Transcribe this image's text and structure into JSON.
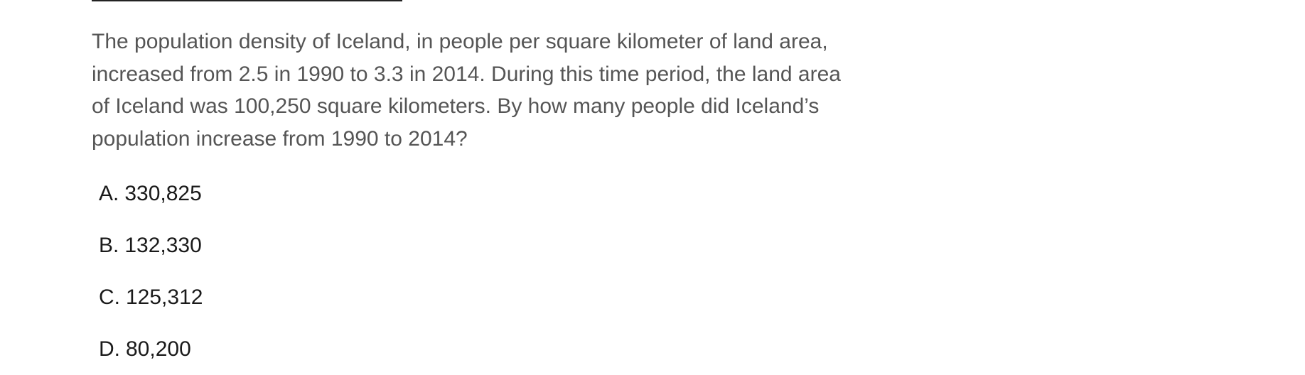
{
  "question": {
    "text": "The population density of Iceland, in people per square kilometer of land area, increased from 2.5 in 1990 to 3.3 in 2014. During this time period, the land area of Iceland was 100,250 square kilometers. By how many people did Iceland’s population increase from 1990 to 2014?"
  },
  "choices": [
    {
      "letter": "A.",
      "text": "330,825"
    },
    {
      "letter": "B.",
      "text": "132,330"
    },
    {
      "letter": "C.",
      "text": "125,312"
    },
    {
      "letter": "D.",
      "text": "80,200"
    }
  ]
}
